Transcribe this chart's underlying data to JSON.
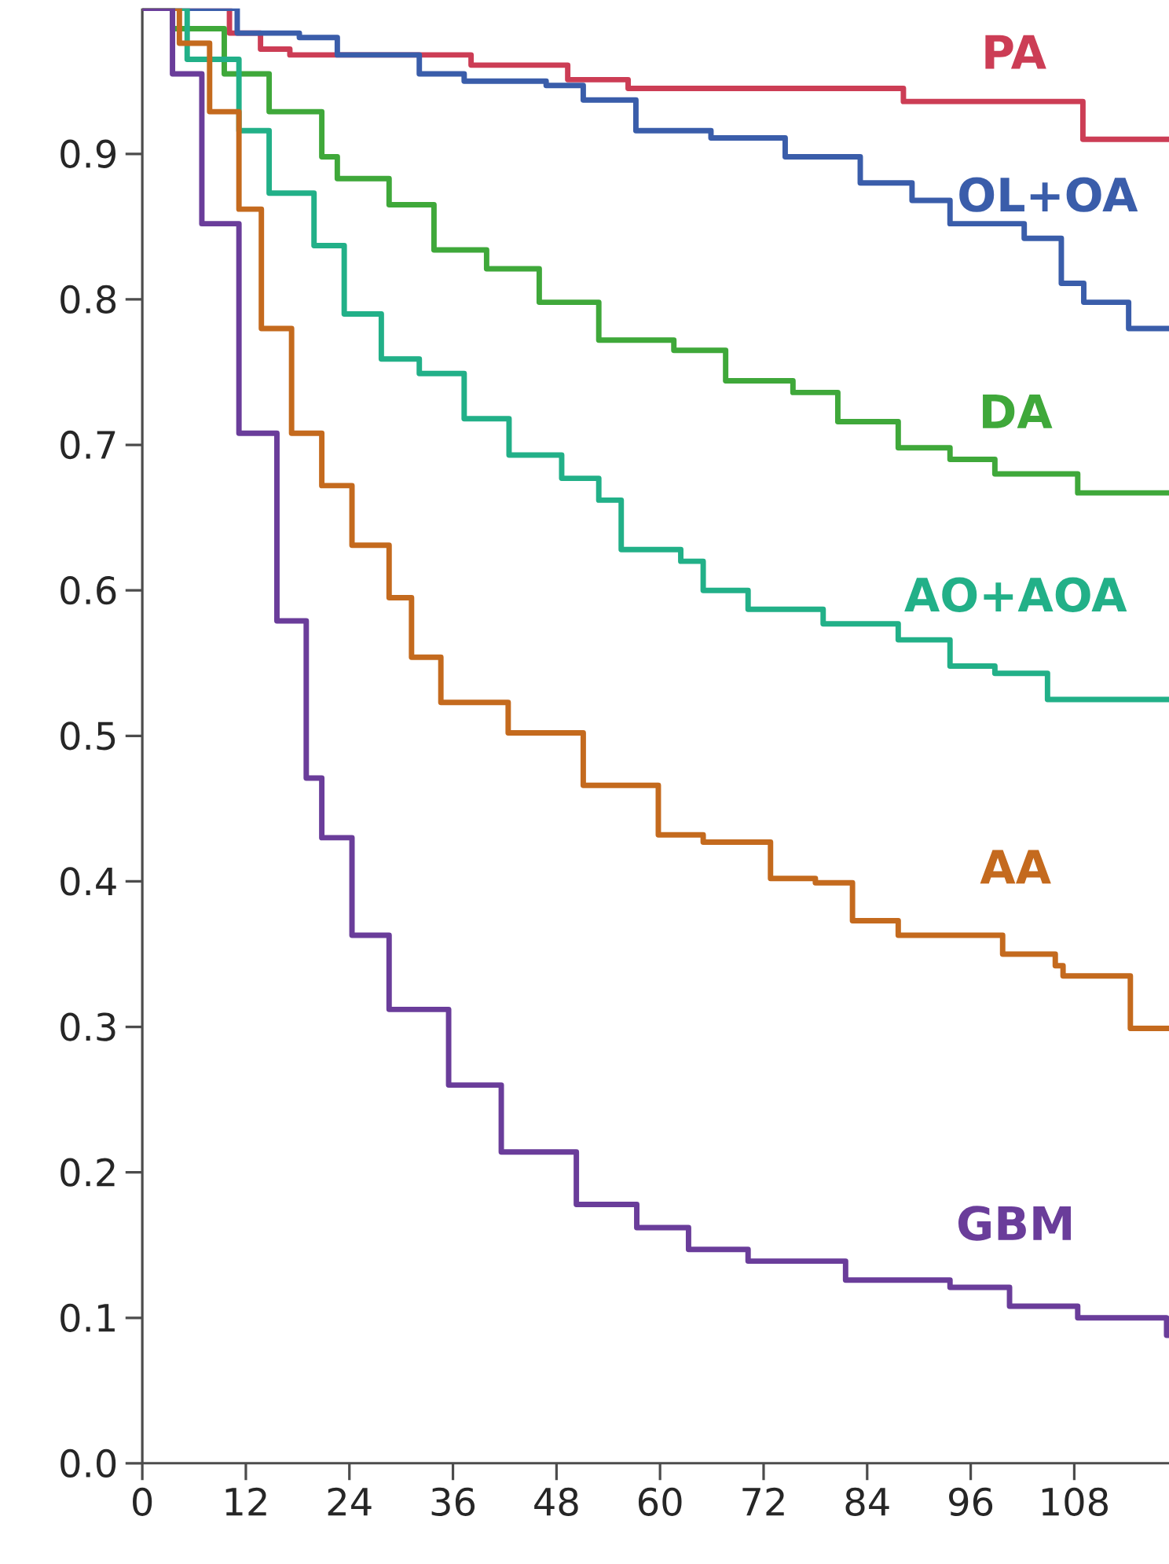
{
  "chart_data": {
    "type": "step",
    "xlim": [
      0,
      119
    ],
    "ylim": [
      0,
      1
    ],
    "xticks": [
      0,
      12,
      24,
      36,
      48,
      60,
      72,
      84,
      96,
      108
    ],
    "yticks": [
      {
        "value": 0,
        "label": "0.0"
      },
      0.1,
      0.2,
      0.3,
      0.4,
      0.5,
      0.6,
      0.7,
      0.8,
      0.9
    ],
    "grid": false,
    "legend": false,
    "marker": "none",
    "line_style": "solid",
    "series": [
      {
        "name": "PA",
        "color": "#cc3d55",
        "x": [
          0,
          10.1,
          13.7,
          17.1,
          38.1,
          49.3,
          56.3,
          88.2,
          109,
          119
        ],
        "values": [
          1,
          0.983,
          0.972,
          0.968,
          0.961,
          0.951,
          0.945,
          0.936,
          0.91,
          0.91
        ]
      },
      {
        "name": "OL+OA",
        "color": "#3a5daa",
        "x": [
          0,
          11,
          18.2,
          22.6,
          32.1,
          37.3,
          46.8,
          51.1,
          57.2,
          65.9,
          74.5,
          83.2,
          89.2,
          93.6,
          102.2,
          106.5,
          109.1,
          114.3,
          119
        ],
        "values": [
          1,
          0.983,
          0.98,
          0.968,
          0.955,
          0.95,
          0.947,
          0.937,
          0.916,
          0.911,
          0.898,
          0.88,
          0.868,
          0.852,
          0.842,
          0.811,
          0.798,
          0.78,
          0.78
        ]
      },
      {
        "name": "DA",
        "color": "#3fa83a",
        "x": [
          0,
          3.5,
          9.5,
          14.7,
          20.8,
          22.6,
          28.6,
          33.8,
          39.9,
          46,
          52.9,
          61.6,
          67.6,
          75.4,
          80.6,
          87.6,
          93.6,
          98.8,
          108.4,
          119
        ],
        "values": [
          1,
          0.986,
          0.955,
          0.929,
          0.898,
          0.883,
          0.865,
          0.834,
          0.821,
          0.798,
          0.772,
          0.765,
          0.744,
          0.736,
          0.716,
          0.698,
          0.69,
          0.68,
          0.667,
          0.667
        ]
      },
      {
        "name": "AO+AOA",
        "color": "#22b088",
        "x": [
          0,
          5.2,
          11.2,
          14.7,
          19.9,
          23.4,
          27.7,
          32.1,
          37.3,
          42.5,
          48.6,
          52.9,
          55.5,
          62.4,
          65,
          70.2,
          78.9,
          87.6,
          93.6,
          98.8,
          104.9,
          119
        ],
        "values": [
          1,
          0.965,
          0.916,
          0.873,
          0.837,
          0.79,
          0.759,
          0.749,
          0.718,
          0.693,
          0.677,
          0.662,
          0.628,
          0.62,
          0.6,
          0.587,
          0.577,
          0.566,
          0.548,
          0.543,
          0.525,
          0.525
        ]
      },
      {
        "name": "AA",
        "color": "#c46a1e",
        "x": [
          0,
          4.3,
          7.8,
          11.2,
          13.8,
          17.3,
          20.8,
          24.3,
          28.6,
          31.2,
          34.6,
          42.4,
          51.1,
          59.8,
          65,
          72.8,
          78,
          82.3,
          87.6,
          99.7,
          105.8,
          106.7,
          114.5,
          119
        ],
        "values": [
          1,
          0.976,
          0.929,
          0.862,
          0.78,
          0.708,
          0.672,
          0.631,
          0.595,
          0.554,
          0.523,
          0.502,
          0.466,
          0.432,
          0.427,
          0.402,
          0.399,
          0.373,
          0.363,
          0.35,
          0.342,
          0.335,
          0.299,
          0.299
        ]
      },
      {
        "name": "GBM",
        "color": "#6a3d9a",
        "x": [
          0,
          3.5,
          6.9,
          11.2,
          15.6,
          19,
          20.8,
          24.3,
          28.6,
          35.5,
          41.6,
          50.3,
          57.3,
          63.3,
          70.2,
          81.5,
          93.6,
          100.5,
          108.4,
          118.7,
          119
        ],
        "values": [
          1,
          0.955,
          0.852,
          0.708,
          0.579,
          0.471,
          0.43,
          0.363,
          0.312,
          0.26,
          0.214,
          0.178,
          0.162,
          0.147,
          0.139,
          0.126,
          0.121,
          0.108,
          0.1,
          0.088,
          0.088
        ]
      }
    ]
  }
}
